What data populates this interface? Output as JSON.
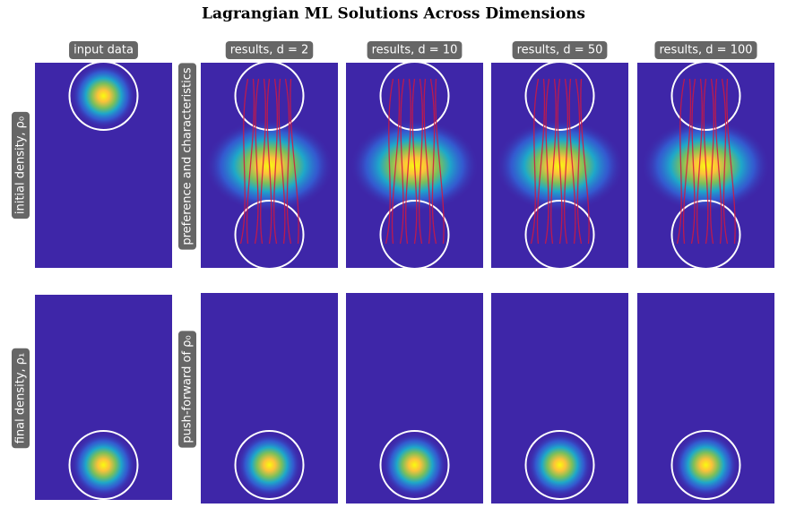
{
  "title": "Lagrangian ML Solutions Across Dimensions",
  "columns": [
    "input data",
    "results, d = 2",
    "results, d = 10",
    "results, d = 50",
    "results, d = 100"
  ],
  "rows": [
    {
      "label": "initial density, ρ₀",
      "results_label": "preference and characteristics"
    },
    {
      "label": "final density, ρ₁",
      "results_label": "push-forward of ρ₀"
    }
  ]
}
